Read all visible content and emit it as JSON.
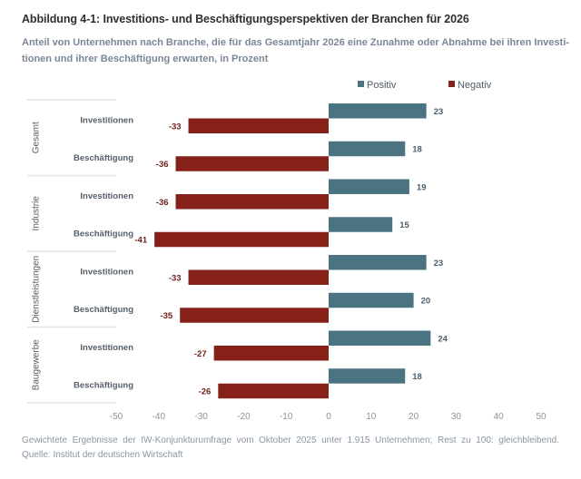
{
  "title": "Abbildung 4-1: Investitions- und Beschäftigungsperspektiven der Branchen für 2026",
  "subtitle": {
    "line1": "Anteil von Unternehmen nach Branche, die für das Gesamtjahr 2026 eine Zunahme oder Abnahme bei ihren Investi-",
    "line2": "tionen und ihrer Beschäftigung erwarten, in Prozent"
  },
  "legend": {
    "positive": {
      "label": "Positiv",
      "color": "#4a7482"
    },
    "negative": {
      "label": "Negativ",
      "color": "#852119"
    }
  },
  "footnote": {
    "line1": "Gewichtete Ergebnisse der IW-Konjunkturumfrage vom Oktober 2025 unter 1.915 Unternehmen; Rest zu 100: gleichbleibend.",
    "line2": "Quelle: Institut der deutschen Wirtschaft"
  },
  "chart_data": {
    "type": "bar",
    "orientation": "horizontal",
    "title": "Abbildung 4-1: Investitions- und Beschäftigungsperspektiven der Branchen für 2026",
    "xlabel": "",
    "ylabel": "",
    "xlim": [
      -50,
      50
    ],
    "xticks": [
      -50,
      -40,
      -30,
      -20,
      -10,
      0,
      10,
      20,
      30,
      40,
      50
    ],
    "grid": false,
    "legend_position": "top-right",
    "groups": [
      {
        "name": "Gesamt",
        "categories": [
          {
            "label": "Investitionen",
            "positive": 23,
            "negative": -33
          },
          {
            "label": "Beschäftigung",
            "positive": 18,
            "negative": -36
          }
        ]
      },
      {
        "name": "Industrie",
        "categories": [
          {
            "label": "Investitionen",
            "positive": 19,
            "negative": -36
          },
          {
            "label": "Beschäftigung",
            "positive": 15,
            "negative": -41
          }
        ]
      },
      {
        "name": "Dienstleistungen",
        "categories": [
          {
            "label": "Investitionen",
            "positive": 23,
            "negative": -33
          },
          {
            "label": "Beschäftigung",
            "positive": 20,
            "negative": -35
          }
        ]
      },
      {
        "name": "Baugewerbe",
        "categories": [
          {
            "label": "Investitionen",
            "positive": 24,
            "negative": -27
          },
          {
            "label": "Beschäftigung",
            "positive": 18,
            "negative": -26
          }
        ]
      }
    ],
    "series": [
      {
        "name": "Positiv",
        "color": "#4a7482"
      },
      {
        "name": "Negativ",
        "color": "#852119"
      }
    ]
  }
}
